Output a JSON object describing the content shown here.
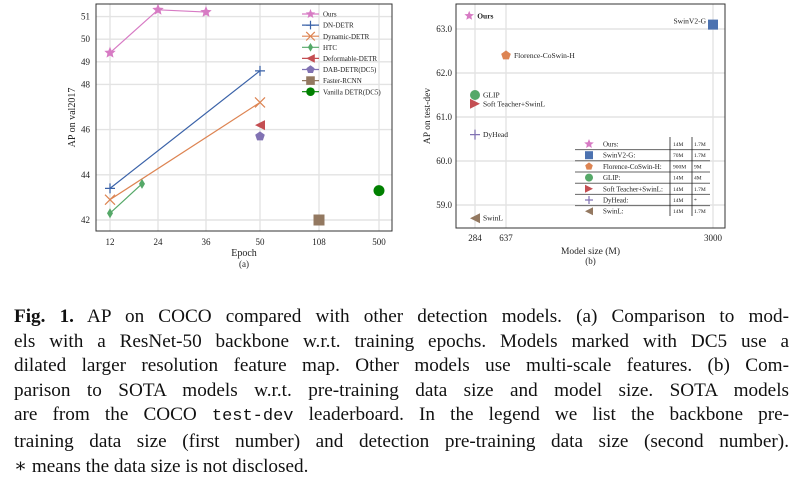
{
  "chart_data": [
    {
      "panel_label": "(a)",
      "type": "line",
      "xlabel": "Epoch",
      "ylabel": "AP on val2017",
      "x_ticks": [
        "12",
        "24",
        "36",
        "50",
        "108",
        "500"
      ],
      "y_ticks": [
        "42",
        "44",
        "46",
        "48",
        "49",
        "50",
        "51"
      ],
      "grid": true,
      "legend_position": "top-right",
      "series": [
        {
          "name": "Ours",
          "marker": "star",
          "color": "#D77BC4",
          "x": [
            12,
            24,
            36
          ],
          "y": [
            49.4,
            51.3,
            51.2
          ]
        },
        {
          "name": "DN-DETR",
          "marker": "plus",
          "color": "#3A62A8",
          "x": [
            12,
            50
          ],
          "y": [
            43.4,
            48.6
          ]
        },
        {
          "name": "Dynamic-DETR",
          "marker": "x",
          "color": "#DD8452",
          "x": [
            12,
            50
          ],
          "y": [
            42.9,
            47.2
          ]
        },
        {
          "name": "HTC",
          "marker": "diamond",
          "color": "#55A868",
          "x": [
            12,
            20
          ],
          "y": [
            42.3,
            43.6
          ]
        },
        {
          "name": "Deformable-DETR",
          "marker": "triangle-left",
          "color": "#C44E52",
          "x": [
            50
          ],
          "y": [
            46.2
          ]
        },
        {
          "name": "DAB-DETR(DC5)",
          "marker": "pentagon",
          "color": "#8172B3",
          "x": [
            50
          ],
          "y": [
            45.7
          ]
        },
        {
          "name": "Faster-RCNN",
          "marker": "square",
          "color": "#937860",
          "x": [
            108
          ],
          "y": [
            42.0
          ]
        },
        {
          "name": "Vanilla DETR(DC5)",
          "marker": "circle",
          "color": "#008000",
          "x": [
            500
          ],
          "y": [
            43.3
          ]
        }
      ]
    },
    {
      "panel_label": "(b)",
      "type": "scatter",
      "xlabel": "Model size (M)",
      "ylabel": "AP on test-dev",
      "x_ticks": [
        "284",
        "637",
        "3000"
      ],
      "y_ticks": [
        "59.0",
        "60.0",
        "61.0",
        "62.0",
        "63.0"
      ],
      "grid": true,
      "legend_position": "bottom-right",
      "series": [
        {
          "name": "Ours",
          "legend_label": "Ours:",
          "marker": "star",
          "color": "#D77BC4",
          "x": 218,
          "y": 63.3,
          "backbone_data": "14M",
          "detection_data": "1.7M"
        },
        {
          "name": "SwinV2-G",
          "legend_label": "SwinV2-G:",
          "marker": "square",
          "color": "#4C72B0",
          "x": 3000,
          "y": 63.1,
          "backbone_data": "70M",
          "detection_data": "1.7M"
        },
        {
          "name": "Florence-CoSwin-H",
          "legend_label": "Florence-CoSwin-H:",
          "marker": "pentagon",
          "color": "#DD8452",
          "x": 637,
          "y": 62.4,
          "backbone_data": "900M",
          "detection_data": "9M"
        },
        {
          "name": "GLIP",
          "legend_label": "GLIP:",
          "marker": "circle",
          "color": "#55A868",
          "x": 284,
          "y": 61.5,
          "backbone_data": "14M",
          "detection_data": "4M"
        },
        {
          "name": "Soft Teacher+SwinL",
          "legend_label": "Soft Teacher+SwinL:",
          "marker": "triangle-right",
          "color": "#C44E52",
          "x": 284,
          "y": 61.3,
          "backbone_data": "14M",
          "detection_data": "1.7M"
        },
        {
          "name": "DyHead",
          "legend_label": "DyHead:",
          "marker": "plus",
          "color": "#8172B3",
          "x": 284,
          "y": 60.6,
          "backbone_data": "14M",
          "detection_data": "*"
        },
        {
          "name": "SwinL",
          "legend_label": "SwinL:",
          "marker": "triangle-left",
          "color": "#937860",
          "x": 284,
          "y": 58.7,
          "backbone_data": "14M",
          "detection_data": "1.7M"
        }
      ]
    }
  ],
  "caption": {
    "fig_label": "Fig. 1.",
    "lines": [
      " AP on COCO compared with other detection models. (a) Comparison to mod-",
      "els with a ResNet-50 backbone w.r.t. training epochs. Models marked with DC5 use a",
      "dilated larger resolution feature map. Other models use multi-scale features. (b) Com-",
      "parison to SOTA models w.r.t. pre-training data size and model size. SOTA models",
      "are from the COCO ",
      "test-dev",
      " leaderboard. In the legend we list the backbone pre-",
      "training data size (first number) and detection pre-training data size (second number).",
      "∗ means the data size is not disclosed."
    ]
  }
}
